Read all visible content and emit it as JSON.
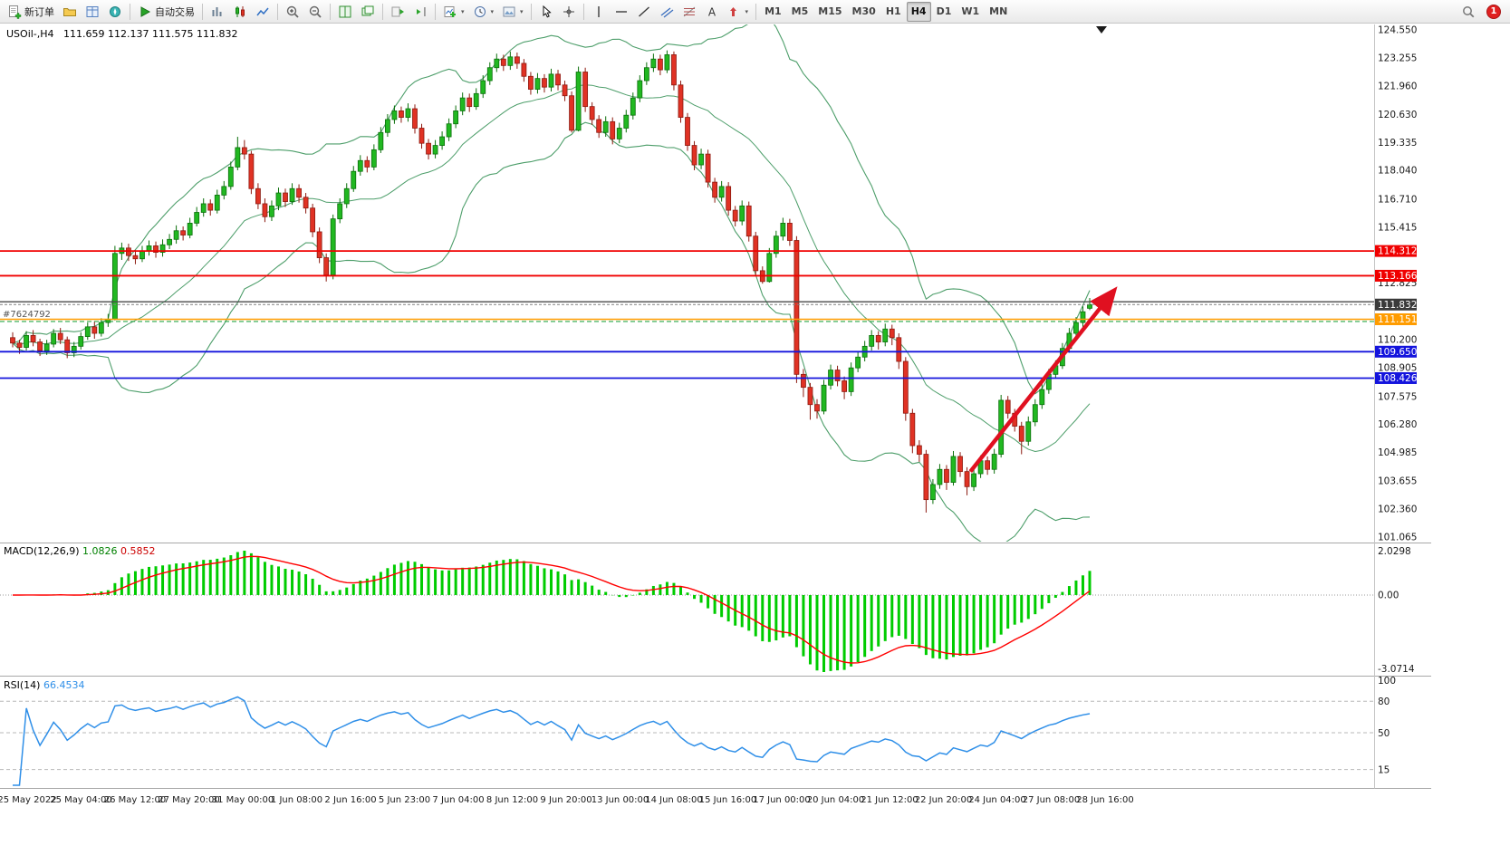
{
  "toolbar": {
    "new_order": "新订单",
    "autotrade": "自动交易",
    "text_tool_label": "A",
    "timeframes": [
      "M1",
      "M5",
      "M15",
      "M30",
      "H1",
      "H4",
      "D1",
      "W1",
      "MN"
    ],
    "active_timeframe": "H4",
    "notification_count": "1"
  },
  "chart": {
    "symbol_label": "USOil-,H4",
    "ohlc_label": "111.659 112.137 111.575 111.832",
    "order_label": "#7624792",
    "up_color": "#21b821",
    "down_color": "#e03224",
    "bollinger_color": "#4d9e6a",
    "price_axis_labels": [
      "124.550",
      "123.255",
      "121.960",
      "120.630",
      "119.335",
      "118.040",
      "116.710",
      "115.415",
      "112.825",
      "110.200",
      "108.905",
      "107.575",
      "106.280",
      "104.985",
      "103.655",
      "102.360",
      "101.065"
    ],
    "price_badges": [
      {
        "value": "114.312",
        "color": "#f00000"
      },
      {
        "value": "113.166",
        "color": "#f00000"
      },
      {
        "value": "111.832",
        "color": "#3a3a3a"
      },
      {
        "value": "111.151",
        "color": "#ff9c00"
      },
      {
        "value": "109.650",
        "color": "#1414dd"
      },
      {
        "value": "108.426",
        "color": "#1414dd"
      }
    ],
    "levels": {
      "resistance_lines": [
        114.312,
        113.166
      ],
      "resistance_color": "#f00000",
      "trend_level": {
        "price": 111.96,
        "color": "#4a4a4a"
      },
      "bid": {
        "price": 111.832,
        "color": "#3a3a3a"
      },
      "order": {
        "price": 111.151,
        "color": "#ff9c00"
      },
      "dashed_green": {
        "price": 111.05,
        "color": "#2aa84a"
      },
      "support_lines": [
        109.65,
        108.426
      ],
      "support_color": "#1414dd"
    },
    "trend_arrow": {
      "from_bar": 140.5,
      "from_price": 104.1,
      "to_bar": 161.5,
      "to_price": 112.45,
      "color": "#e01020"
    }
  },
  "macd": {
    "label": "MACD(12,26,9)",
    "value_main": "1.0826",
    "value_signal": "0.5852",
    "axis": [
      "2.0298",
      "0.00",
      "-3.0714"
    ],
    "histogram_color": "#00cc00",
    "signal_color": "#ff0000"
  },
  "rsi": {
    "label": "RSI(14)",
    "value": "66.4534",
    "axis": [
      "100",
      "80",
      "50",
      "15"
    ],
    "levels": [
      80,
      50,
      15
    ],
    "line_color": "#2f8fe8"
  },
  "time_axis": [
    "25 May 2022",
    "25 May 04:00",
    "26 May 12:00",
    "27 May 20:00",
    "31 May 00:00",
    "1 Jun 08:00",
    "2 Jun 16:00",
    "5 Jun 23:00",
    "7 Jun 04:00",
    "8 Jun 12:00",
    "9 Jun 20:00",
    "13 Jun 00:00",
    "14 Jun 08:00",
    "15 Jun 16:00",
    "17 Jun 00:00",
    "20 Jun 04:00",
    "21 Jun 12:00",
    "22 Jun 20:00",
    "24 Jun 04:00",
    "27 Jun 08:00",
    "28 Jun 16:00"
  ],
  "chart_data": {
    "type": "candlestick",
    "symbol": "USOil-",
    "timeframe": "H4",
    "candles": [
      [
        110.3,
        110.55,
        109.85,
        110.05
      ],
      [
        110.05,
        110.2,
        109.55,
        109.85
      ],
      [
        109.85,
        110.6,
        109.7,
        110.4
      ],
      [
        110.4,
        110.65,
        109.9,
        110.1
      ],
      [
        110.1,
        110.25,
        109.45,
        109.7
      ],
      [
        109.7,
        110.2,
        109.5,
        110.0
      ],
      [
        110.0,
        110.7,
        109.85,
        110.5
      ],
      [
        110.5,
        110.75,
        110.0,
        110.2
      ],
      [
        110.2,
        110.35,
        109.35,
        109.6
      ],
      [
        109.6,
        110.1,
        109.4,
        109.9
      ],
      [
        109.9,
        110.55,
        109.75,
        110.35
      ],
      [
        110.35,
        111.0,
        110.2,
        110.8
      ],
      [
        110.8,
        111.05,
        110.25,
        110.5
      ],
      [
        110.5,
        111.2,
        110.35,
        111.0
      ],
      [
        111.0,
        111.4,
        110.8,
        111.15
      ],
      [
        111.15,
        114.55,
        111.1,
        114.2
      ],
      [
        114.2,
        114.7,
        113.9,
        114.45
      ],
      [
        114.45,
        114.65,
        113.85,
        114.1
      ],
      [
        114.1,
        114.35,
        113.7,
        113.95
      ],
      [
        113.95,
        114.55,
        113.8,
        114.3
      ],
      [
        114.3,
        114.8,
        114.1,
        114.55
      ],
      [
        114.55,
        114.75,
        114.0,
        114.25
      ],
      [
        114.25,
        114.85,
        114.05,
        114.6
      ],
      [
        114.6,
        115.1,
        114.4,
        114.85
      ],
      [
        114.85,
        115.5,
        114.65,
        115.25
      ],
      [
        115.25,
        115.45,
        114.8,
        115.05
      ],
      [
        115.05,
        115.85,
        114.9,
        115.6
      ],
      [
        115.6,
        116.35,
        115.45,
        116.1
      ],
      [
        116.1,
        116.75,
        115.9,
        116.5
      ],
      [
        116.5,
        116.7,
        115.95,
        116.2
      ],
      [
        116.2,
        117.15,
        116.05,
        116.9
      ],
      [
        116.9,
        117.55,
        116.7,
        117.3
      ],
      [
        117.3,
        118.45,
        117.15,
        118.2
      ],
      [
        118.2,
        119.6,
        118.05,
        119.1
      ],
      [
        119.1,
        119.45,
        118.55,
        118.8
      ],
      [
        118.8,
        118.95,
        116.95,
        117.2
      ],
      [
        117.2,
        117.45,
        116.25,
        116.5
      ],
      [
        116.5,
        116.75,
        115.65,
        115.9
      ],
      [
        115.9,
        116.65,
        115.7,
        116.4
      ],
      [
        116.4,
        117.25,
        116.2,
        117.0
      ],
      [
        117.0,
        117.2,
        116.35,
        116.6
      ],
      [
        116.6,
        117.45,
        116.45,
        117.2
      ],
      [
        117.2,
        117.4,
        116.55,
        116.8
      ],
      [
        116.8,
        117.0,
        116.05,
        116.3
      ],
      [
        116.3,
        116.5,
        114.95,
        115.2
      ],
      [
        115.2,
        115.4,
        113.75,
        114.0
      ],
      [
        114.0,
        114.2,
        112.9,
        113.2
      ],
      [
        113.2,
        116.0,
        113.0,
        115.8
      ],
      [
        115.8,
        116.75,
        115.6,
        116.5
      ],
      [
        116.5,
        117.45,
        116.3,
        117.2
      ],
      [
        117.2,
        118.25,
        117.05,
        118.0
      ],
      [
        118.0,
        118.75,
        117.8,
        118.5
      ],
      [
        118.5,
        118.7,
        117.95,
        118.2
      ],
      [
        118.2,
        119.25,
        118.05,
        119.0
      ],
      [
        119.0,
        120.05,
        118.85,
        119.8
      ],
      [
        119.8,
        120.65,
        119.6,
        120.4
      ],
      [
        120.4,
        121.05,
        120.2,
        120.8
      ],
      [
        120.8,
        121.0,
        120.25,
        120.5
      ],
      [
        120.5,
        121.15,
        120.3,
        120.9
      ],
      [
        120.9,
        121.1,
        119.75,
        120.0
      ],
      [
        120.0,
        120.2,
        119.05,
        119.3
      ],
      [
        119.3,
        119.5,
        118.55,
        118.8
      ],
      [
        118.8,
        119.45,
        118.6,
        119.2
      ],
      [
        119.2,
        119.85,
        119.0,
        119.6
      ],
      [
        119.6,
        120.45,
        119.4,
        120.2
      ],
      [
        120.2,
        121.05,
        120.0,
        120.8
      ],
      [
        120.8,
        121.65,
        120.6,
        121.4
      ],
      [
        121.4,
        121.6,
        120.75,
        121.0
      ],
      [
        121.0,
        121.85,
        120.85,
        121.6
      ],
      [
        121.6,
        122.45,
        121.4,
        122.2
      ],
      [
        122.2,
        123.05,
        122.0,
        122.8
      ],
      [
        122.8,
        123.45,
        122.6,
        123.2
      ],
      [
        123.2,
        123.4,
        122.65,
        122.9
      ],
      [
        122.9,
        123.55,
        122.7,
        123.3
      ],
      [
        123.3,
        123.5,
        122.75,
        123.0
      ],
      [
        123.0,
        123.2,
        122.15,
        122.4
      ],
      [
        122.4,
        122.6,
        121.55,
        121.8
      ],
      [
        121.8,
        122.55,
        121.6,
        122.3
      ],
      [
        122.3,
        122.5,
        121.65,
        121.9
      ],
      [
        121.9,
        122.75,
        121.7,
        122.5
      ],
      [
        122.5,
        122.7,
        121.75,
        122.0
      ],
      [
        122.0,
        122.2,
        121.25,
        121.5
      ],
      [
        121.5,
        121.7,
        119.8,
        119.9
      ],
      [
        119.9,
        122.85,
        119.85,
        122.6
      ],
      [
        122.6,
        122.8,
        120.75,
        121.0
      ],
      [
        121.0,
        121.2,
        120.15,
        120.4
      ],
      [
        120.4,
        120.6,
        119.55,
        119.8
      ],
      [
        119.8,
        120.55,
        119.6,
        120.3
      ],
      [
        120.3,
        120.5,
        119.25,
        119.5
      ],
      [
        119.5,
        120.25,
        119.3,
        120.0
      ],
      [
        120.0,
        120.85,
        119.8,
        120.6
      ],
      [
        120.6,
        121.65,
        120.4,
        121.4
      ],
      [
        121.4,
        122.45,
        121.2,
        122.2
      ],
      [
        122.2,
        123.05,
        122.0,
        122.8
      ],
      [
        122.8,
        123.45,
        122.6,
        123.2
      ],
      [
        123.2,
        123.4,
        122.45,
        122.7
      ],
      [
        122.7,
        123.6,
        122.55,
        123.4
      ],
      [
        123.4,
        123.55,
        121.75,
        122.0
      ],
      [
        122.0,
        122.2,
        120.25,
        120.5
      ],
      [
        120.5,
        120.7,
        118.95,
        119.2
      ],
      [
        119.2,
        119.4,
        118.05,
        118.3
      ],
      [
        118.3,
        119.05,
        118.1,
        118.8
      ],
      [
        118.8,
        119.0,
        117.25,
        117.5
      ],
      [
        117.5,
        117.7,
        116.55,
        116.8
      ],
      [
        116.8,
        117.55,
        116.6,
        117.3
      ],
      [
        117.3,
        117.5,
        115.95,
        116.2
      ],
      [
        116.2,
        116.4,
        115.45,
        115.7
      ],
      [
        115.7,
        116.65,
        115.5,
        116.4
      ],
      [
        116.4,
        116.6,
        114.75,
        115.0
      ],
      [
        115.0,
        115.2,
        113.15,
        113.4
      ],
      [
        113.4,
        113.6,
        112.8,
        112.9
      ],
      [
        112.9,
        114.45,
        112.85,
        114.2
      ],
      [
        114.2,
        115.25,
        114.0,
        115.0
      ],
      [
        115.0,
        115.85,
        114.8,
        115.6
      ],
      [
        115.6,
        115.8,
        114.55,
        114.8
      ],
      [
        114.8,
        115.0,
        108.2,
        108.6
      ],
      [
        108.6,
        108.85,
        107.55,
        108.0
      ],
      [
        108.0,
        108.2,
        106.5,
        107.2
      ],
      [
        107.2,
        107.45,
        106.55,
        106.9
      ],
      [
        106.9,
        108.35,
        106.75,
        108.1
      ],
      [
        108.1,
        109.05,
        107.9,
        108.8
      ],
      [
        108.8,
        109.0,
        108.05,
        108.3
      ],
      [
        108.3,
        108.5,
        107.45,
        107.8
      ],
      [
        107.8,
        109.15,
        107.6,
        108.9
      ],
      [
        108.9,
        109.65,
        108.7,
        109.4
      ],
      [
        109.4,
        110.15,
        109.2,
        109.9
      ],
      [
        109.9,
        110.65,
        109.7,
        110.4
      ],
      [
        110.4,
        110.6,
        109.75,
        110.1
      ],
      [
        110.1,
        110.95,
        109.9,
        110.7
      ],
      [
        110.7,
        110.9,
        109.95,
        110.3
      ],
      [
        110.3,
        110.5,
        108.85,
        109.2
      ],
      [
        109.2,
        109.4,
        106.45,
        106.8
      ],
      [
        106.8,
        107.0,
        104.95,
        105.3
      ],
      [
        105.3,
        105.55,
        104.55,
        104.9
      ],
      [
        104.9,
        105.1,
        102.2,
        102.8
      ],
      [
        102.8,
        103.75,
        102.6,
        103.5
      ],
      [
        103.5,
        104.45,
        103.3,
        104.2
      ],
      [
        104.2,
        104.4,
        103.25,
        103.6
      ],
      [
        103.6,
        105.05,
        103.45,
        104.8
      ],
      [
        104.8,
        105.0,
        103.85,
        104.1
      ],
      [
        104.1,
        104.3,
        103.0,
        103.4
      ],
      [
        103.4,
        104.25,
        103.2,
        104.0
      ],
      [
        104.0,
        104.85,
        103.8,
        104.6
      ],
      [
        104.6,
        104.8,
        103.95,
        104.2
      ],
      [
        104.2,
        105.15,
        104.0,
        104.9
      ],
      [
        104.9,
        107.65,
        104.75,
        107.4
      ],
      [
        107.4,
        107.6,
        106.55,
        106.8
      ],
      [
        106.8,
        107.0,
        105.95,
        106.2
      ],
      [
        106.2,
        106.4,
        104.9,
        105.5
      ],
      [
        105.5,
        106.65,
        105.3,
        106.4
      ],
      [
        106.4,
        107.45,
        106.2,
        107.2
      ],
      [
        107.2,
        108.15,
        107.0,
        107.9
      ],
      [
        107.9,
        108.85,
        107.7,
        108.6
      ],
      [
        108.6,
        109.25,
        108.4,
        109.0
      ],
      [
        109.0,
        110.05,
        108.85,
        109.8
      ],
      [
        109.8,
        110.75,
        109.6,
        110.5
      ],
      [
        110.5,
        111.25,
        110.3,
        111.0
      ],
      [
        111.0,
        111.75,
        110.8,
        111.5
      ],
      [
        111.659,
        112.137,
        111.575,
        111.832
      ]
    ]
  }
}
